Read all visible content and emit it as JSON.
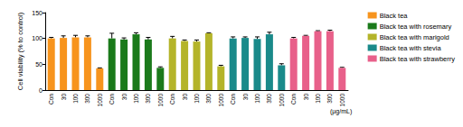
{
  "chart_data": {
    "type": "bar",
    "y_label": "Cell viability (% to control)",
    "x_label": "(µg/mL)",
    "categories": [
      "Con",
      "30",
      "100",
      "300",
      "1000"
    ],
    "ylim": [
      0,
      150
    ],
    "yticks": [
      0,
      50,
      100,
      150
    ],
    "legend": "right",
    "series": [
      {
        "name": "Black tea",
        "color": "#f7941d",
        "values": [
          100,
          101,
          102,
          102,
          42
        ],
        "errors": [
          2,
          4,
          4,
          3,
          1
        ]
      },
      {
        "name": "Black tea with rosemary",
        "color": "#1b7a1b",
        "values": [
          100,
          98,
          108,
          98,
          43
        ],
        "errors": [
          10,
          3,
          3,
          4,
          2
        ]
      },
      {
        "name": "Black tea with marigold",
        "color": "#b4b42a",
        "values": [
          100,
          95,
          94,
          110,
          46
        ],
        "errors": [
          4,
          2,
          3,
          1,
          2
        ]
      },
      {
        "name": "Black tea with stevia",
        "color": "#1a8a8a",
        "values": [
          100,
          101,
          99,
          108,
          48
        ],
        "errors": [
          3,
          2,
          4,
          4,
          3
        ]
      },
      {
        "name": "Black tea with strawberry",
        "color": "#e8608a",
        "values": [
          100,
          105,
          114,
          114,
          43
        ],
        "errors": [
          2,
          1,
          1,
          2,
          1
        ]
      }
    ]
  }
}
